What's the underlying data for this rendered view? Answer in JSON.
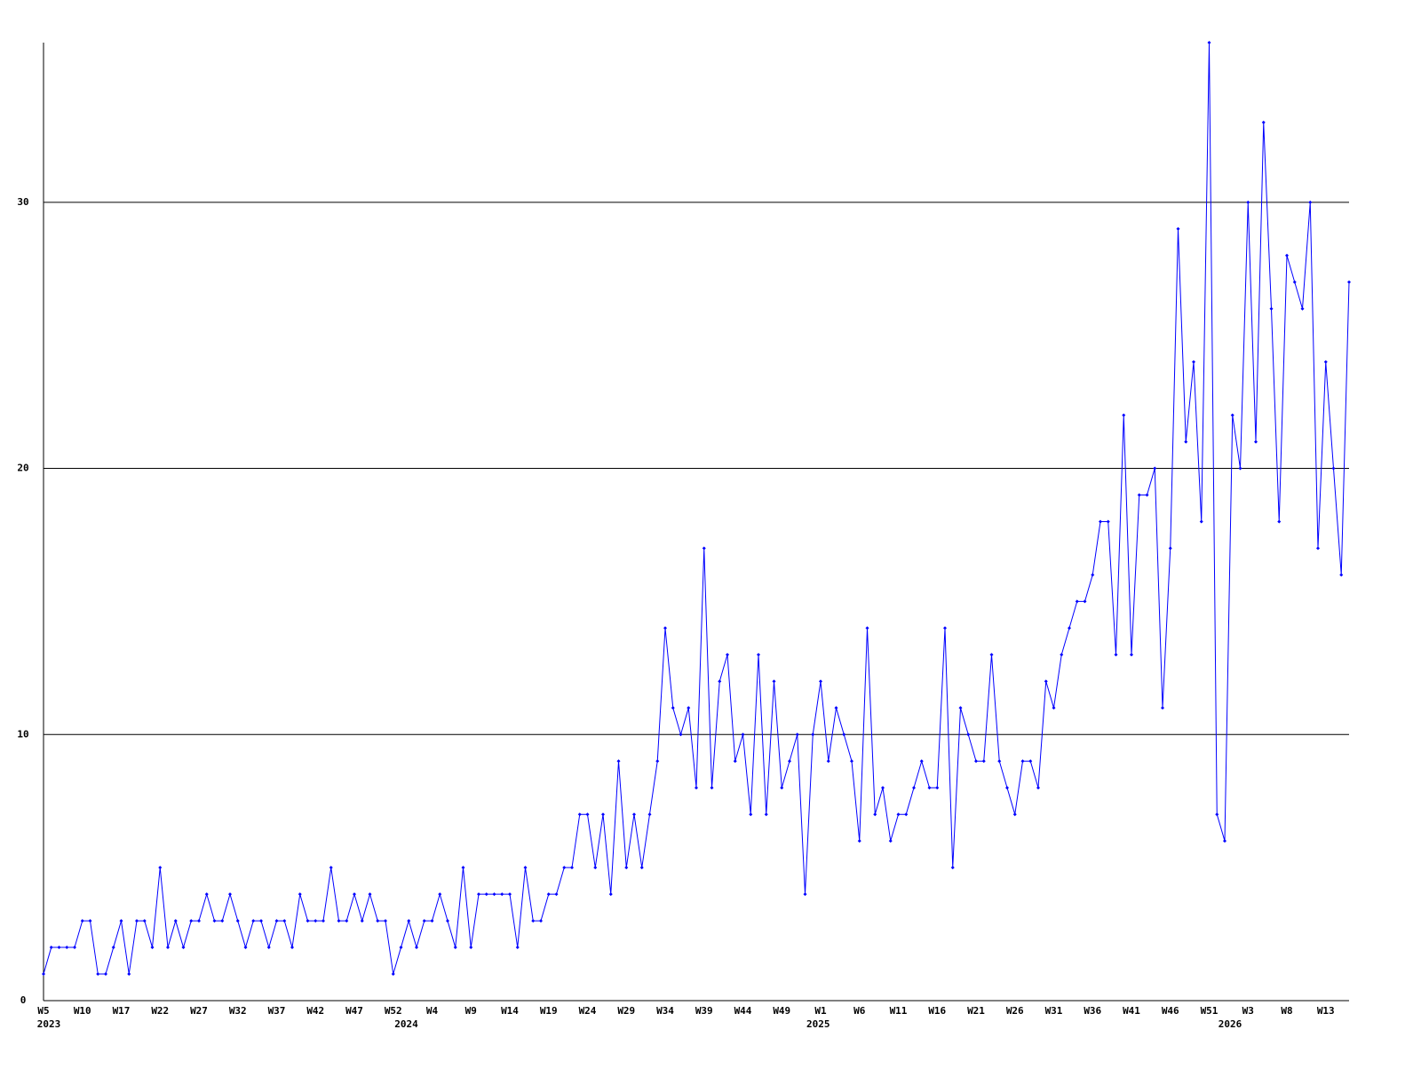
{
  "chart_data": {
    "type": "line",
    "categories": [
      "W5",
      null,
      null,
      null,
      null,
      "W10",
      null,
      null,
      null,
      null,
      "W17",
      null,
      null,
      null,
      null,
      "W22",
      null,
      null,
      null,
      null,
      "W27",
      null,
      null,
      null,
      null,
      "W32",
      null,
      null,
      null,
      null,
      "W37",
      null,
      null,
      null,
      null,
      "W42",
      null,
      null,
      null,
      null,
      "W47",
      null,
      null,
      null,
      null,
      "W52",
      null,
      null,
      null,
      null,
      "W4",
      null,
      null,
      null,
      null,
      "W9",
      null,
      null,
      null,
      null,
      "W14",
      null,
      null,
      null,
      null,
      "W19",
      null,
      null,
      null,
      null,
      "W24",
      null,
      null,
      null,
      null,
      "W29",
      null,
      null,
      null,
      null,
      "W34",
      null,
      null,
      null,
      null,
      "W39",
      null,
      null,
      null,
      null,
      "W44",
      null,
      null,
      null,
      null,
      "W49",
      null,
      null,
      null,
      null,
      "W1",
      null,
      null,
      null,
      null,
      "W6",
      null,
      null,
      null,
      null,
      "W11",
      null,
      null,
      null,
      null,
      "W16",
      null,
      null,
      null,
      null,
      "W21",
      null,
      null,
      null,
      null,
      "W26",
      null,
      null,
      null,
      null,
      "W31",
      null,
      null,
      null,
      null,
      "W36",
      null,
      null,
      null,
      null,
      "W41",
      null,
      null,
      null,
      null,
      "W46",
      null,
      null,
      null,
      null,
      "W51",
      null,
      null,
      null,
      null,
      "W3",
      null,
      null,
      null,
      null,
      "W8",
      null,
      null,
      null,
      null,
      "W13",
      null,
      null,
      null
    ],
    "years": [
      "2023",
      null,
      null,
      null,
      null,
      null,
      null,
      null,
      null,
      null,
      null,
      null,
      null,
      null,
      null,
      null,
      null,
      null,
      null,
      null,
      null,
      null,
      null,
      null,
      null,
      null,
      null,
      null,
      null,
      null,
      null,
      null,
      null,
      null,
      null,
      null,
      null,
      null,
      null,
      null,
      null,
      null,
      null,
      null,
      null,
      null,
      "2024",
      null,
      null,
      null,
      null,
      null,
      null,
      null,
      null,
      null,
      null,
      null,
      null,
      null,
      null,
      null,
      null,
      null,
      null,
      null,
      null,
      null,
      null,
      null,
      null,
      null,
      null,
      null,
      null,
      null,
      null,
      null,
      null,
      null,
      null,
      null,
      null,
      null,
      null,
      null,
      null,
      null,
      null,
      null,
      null,
      null,
      null,
      null,
      null,
      null,
      null,
      null,
      null,
      "2025",
      null,
      null,
      null,
      null,
      null,
      null,
      null,
      null,
      null,
      null,
      null,
      null,
      null,
      null,
      null,
      null,
      null,
      null,
      null,
      null,
      null,
      null,
      null,
      null,
      null,
      null,
      null,
      null,
      null,
      null,
      null,
      null,
      null,
      null,
      null,
      null,
      null,
      null,
      null,
      null,
      null,
      null,
      null,
      null,
      null,
      null,
      null,
      null,
      null,
      null,
      null,
      null,
      "2026",
      null,
      null,
      null,
      null,
      null,
      null,
      null,
      null,
      null,
      null,
      null,
      null,
      null,
      null,
      null,
      null
    ],
    "series": [
      {
        "color": "#0000ff",
        "values": [
          1,
          2,
          2,
          2,
          2,
          3,
          3,
          1,
          1,
          2,
          3,
          1,
          3,
          3,
          2,
          5,
          2,
          3,
          2,
          3,
          3,
          4,
          3,
          3,
          4,
          3,
          2,
          3,
          3,
          2,
          3,
          3,
          2,
          4,
          3,
          3,
          3,
          5,
          3,
          3,
          4,
          3,
          4,
          3,
          3,
          1,
          2,
          3,
          2,
          3,
          3,
          4,
          3,
          2,
          5,
          2,
          4,
          4,
          4,
          4,
          4,
          2,
          5,
          3,
          3,
          4,
          4,
          5,
          5,
          7,
          7,
          5,
          7,
          4,
          9,
          5,
          7,
          5,
          7,
          9,
          14,
          11,
          10,
          11,
          8,
          17,
          8,
          12,
          13,
          9,
          10,
          7,
          13,
          7,
          12,
          8,
          9,
          10,
          4,
          10,
          12,
          9,
          11,
          10,
          9,
          6,
          14,
          7,
          8,
          6,
          7,
          7,
          8,
          9,
          8,
          8,
          14,
          5,
          11,
          10,
          9,
          9,
          13,
          9,
          8,
          7,
          9,
          9,
          8,
          12,
          11,
          13,
          14,
          15,
          15,
          16,
          18,
          18,
          13,
          22,
          13,
          19,
          19,
          20,
          11,
          17,
          29,
          21,
          24,
          18,
          36,
          7,
          6,
          22,
          20,
          30,
          21,
          33,
          26,
          18,
          28,
          27,
          26,
          30,
          17,
          24,
          20,
          16,
          27
        ]
      }
    ],
    "ylim": [
      0,
      36
    ],
    "yticks": [
      0,
      10,
      20,
      30
    ],
    "grid": true
  }
}
